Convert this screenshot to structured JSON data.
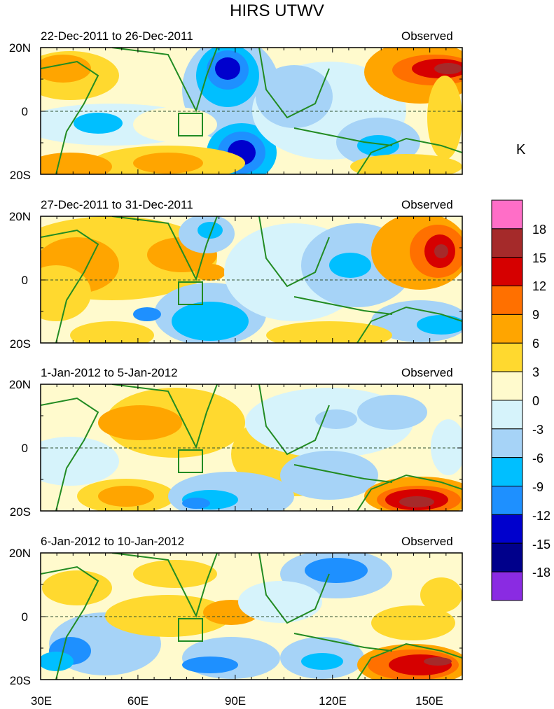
{
  "title": "HIRS UTWV",
  "unit": "K",
  "panels": [
    {
      "date_range": "22-Dec-2011 to 26-Dec-2011",
      "label": "Observed"
    },
    {
      "date_range": "27-Dec-2011 to 31-Dec-2011",
      "label": "Observed"
    },
    {
      "date_range": "1-Jan-2012 to 5-Jan-2012",
      "label": "Observed"
    },
    {
      "date_range": "6-Jan-2012 to 10-Jan-2012",
      "label": "Observed"
    }
  ],
  "y_ticks": [
    "20N",
    "0",
    "20S"
  ],
  "x_ticks": [
    "30E",
    "60E",
    "90E",
    "120E",
    "150E"
  ],
  "colorbar": {
    "labels": [
      "18",
      "15",
      "12",
      "9",
      "6",
      "3",
      "0",
      "-3",
      "-6",
      "-9",
      "-12",
      "-15",
      "-18"
    ],
    "colors": [
      "#ff6ec7",
      "#a52a2a",
      "#d60000",
      "#ff7000",
      "#ffa500",
      "#ffd92f",
      "#fffacd",
      "#d6f3fb",
      "#a6d3f7",
      "#00bfff",
      "#1e90ff",
      "#0000cd",
      "#00008b",
      "#8a2be2"
    ]
  },
  "palette": {
    "coast": "#228b22",
    "pink": "#ff6ec7",
    "brown": "#a52a2a",
    "red": "#d60000",
    "dorange": "#ff7000",
    "orange": "#ffa500",
    "yellow": "#ffd92f",
    "cream": "#fffacd",
    "pale": "#d6f3fb",
    "lblue": "#a6d3f7",
    "cyan": "#00bfff",
    "blue": "#1e90ff",
    "dblue": "#0000cd",
    "navy": "#00008b"
  }
}
